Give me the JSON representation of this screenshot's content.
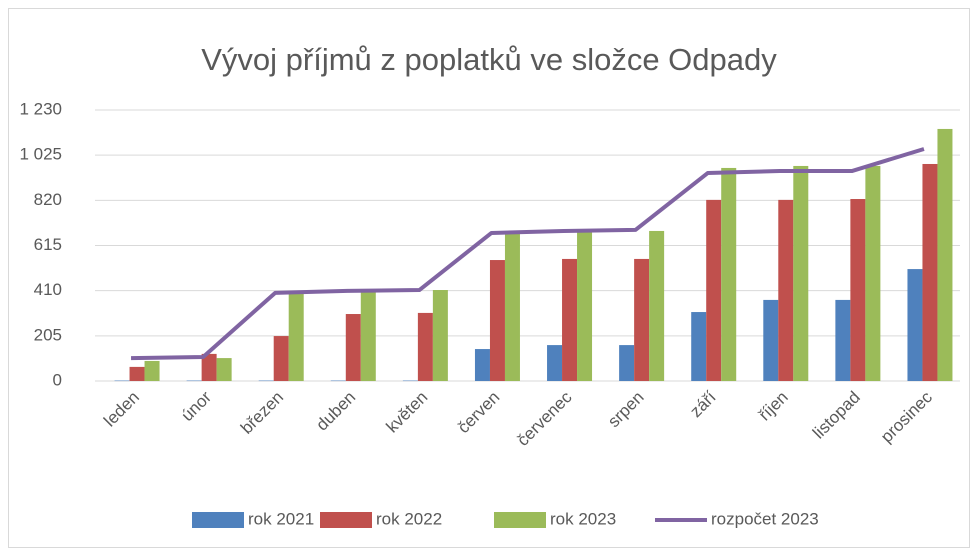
{
  "chart_data": {
    "type": "bar",
    "title": "Vývoj příjmů z poplatků ve složce Odpady",
    "categories": [
      "leden",
      "únor",
      "březen",
      "duben",
      "květen",
      "červen",
      "červenec",
      "srpen",
      "září",
      "říjen",
      "listopad",
      "prosinec"
    ],
    "series": [
      {
        "name": "rok 2021",
        "color": "#4f81bd",
        "values": [
          2,
          2,
          2,
          2,
          2,
          145,
          163,
          163,
          313,
          368,
          368,
          508
        ]
      },
      {
        "name": "rok 2022",
        "color": "#c0504d",
        "values": [
          64,
          123,
          204,
          304,
          309,
          549,
          554,
          554,
          822,
          822,
          826,
          985
        ]
      },
      {
        "name": "rok 2023",
        "color": "#9bbb59",
        "values": [
          91,
          104,
          395,
          404,
          413,
          672,
          681,
          681,
          967,
          976,
          976,
          1144
        ]
      },
      {
        "name": "rozpočet 2023",
        "color": "#8064a2",
        "type": "line",
        "values": [
          104,
          109,
          400,
          409,
          413,
          672,
          681,
          686,
          944,
          953,
          953,
          1053
        ]
      }
    ],
    "ylim": [
      0,
      1230
    ],
    "yticks": [
      0,
      205,
      410,
      615,
      820,
      {
        "value": 1025,
        "label": "1 025"
      },
      {
        "value": 1230,
        "label": "1 230"
      }
    ],
    "grid": true,
    "legend": "bottom"
  }
}
